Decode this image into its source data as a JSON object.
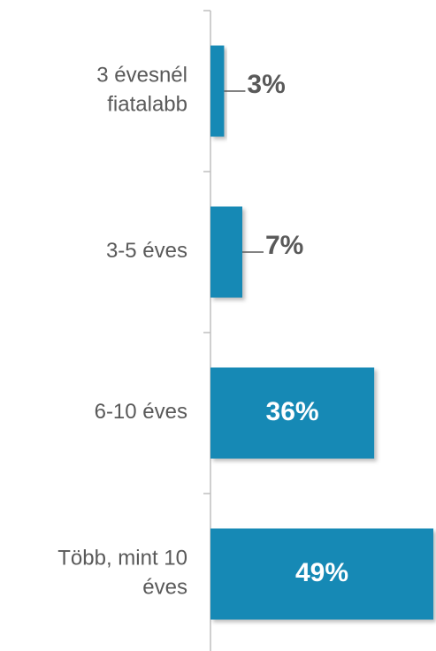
{
  "chart_data": {
    "type": "bar",
    "orientation": "horizontal",
    "categories": [
      [
        "3 évesnél",
        "fiatalabb"
      ],
      [
        "3-5 éves"
      ],
      [
        "6-10 éves"
      ],
      [
        "Több, mint 10",
        "éves"
      ]
    ],
    "values": [
      3,
      7,
      36,
      49
    ],
    "value_labels": [
      "3%",
      "7%",
      "36%",
      "49%"
    ],
    "xlim": [
      0,
      49
    ],
    "grid": false,
    "colors": {
      "bar": "#1689B5",
      "axis": "#BFBFBF",
      "category_text": "#595959",
      "label_outside": "#595959",
      "label_inside": "#FFFFFF"
    }
  }
}
